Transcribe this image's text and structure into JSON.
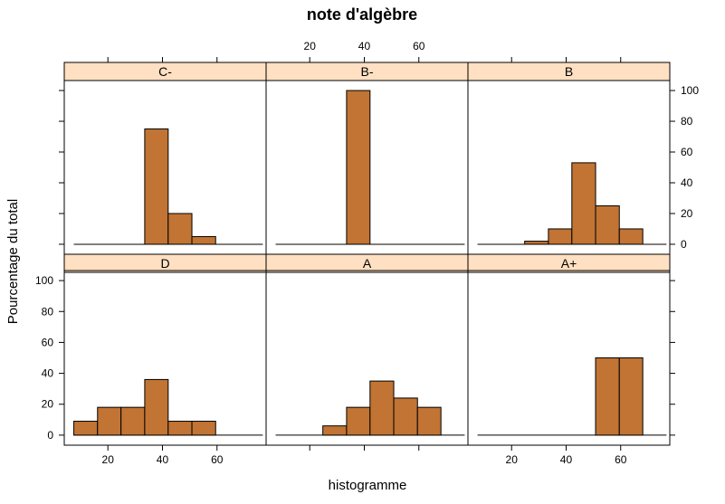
{
  "chart_data": {
    "type": "bar",
    "title": "note d'algèbre",
    "xlabel": "histogramme",
    "ylabel": "Pourcentage du total",
    "xlim": [
      4,
      78
    ],
    "ylim": [
      -6.5,
      106.5
    ],
    "x_ticks": [
      20,
      40,
      60
    ],
    "y_ticks": [
      0,
      20,
      40,
      60,
      80,
      100
    ],
    "bin_edges": [
      7.5,
      16.2,
      24.8,
      33.5,
      42.1,
      50.8,
      59.5,
      68.1,
      76.8
    ],
    "colors": {
      "bar_fill": "#c17433",
      "strip_fill": "#ffe0c2",
      "baseline": "#000000"
    },
    "panels": [
      {
        "name": "C-",
        "values": [
          0,
          0,
          0,
          75,
          20,
          5,
          0,
          0
        ]
      },
      {
        "name": "B-",
        "values": [
          0,
          0,
          0,
          100,
          0,
          0,
          0,
          0
        ]
      },
      {
        "name": "B",
        "values": [
          0,
          0,
          2,
          10,
          53,
          25,
          10,
          0
        ]
      },
      {
        "name": "D",
        "values": [
          9,
          18,
          18,
          36,
          9,
          9,
          0,
          0
        ]
      },
      {
        "name": "A",
        "values": [
          0,
          0,
          6,
          18,
          35,
          24,
          18,
          0
        ]
      },
      {
        "name": "A+",
        "values": [
          0,
          0,
          0,
          0,
          0,
          50,
          50,
          0
        ]
      }
    ]
  }
}
